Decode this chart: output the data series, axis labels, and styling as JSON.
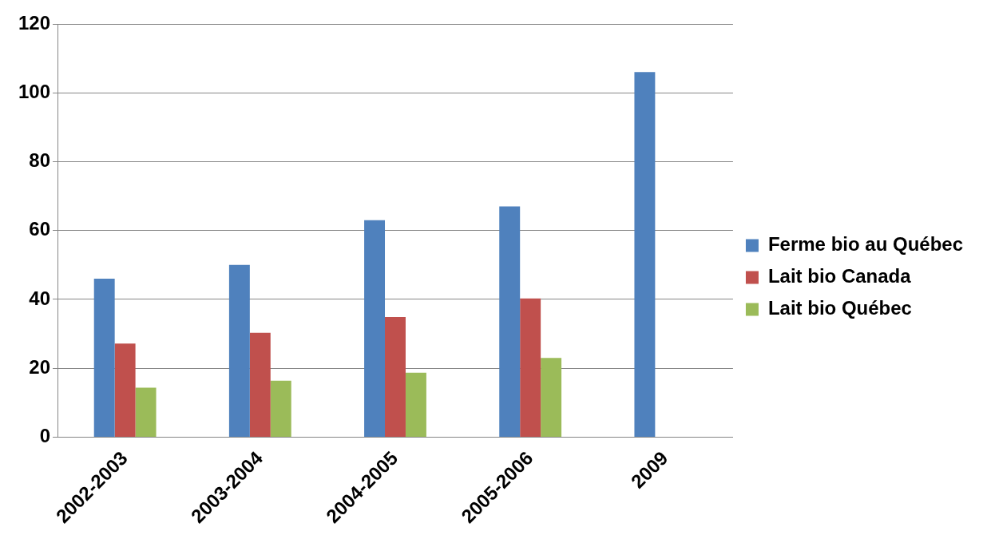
{
  "chart_data": {
    "type": "bar",
    "categories": [
      "2002-2003",
      "2003-2004",
      "2004-2005",
      "2005-2006",
      "2009"
    ],
    "series": [
      {
        "name": "Ferme bio au Québec",
        "color": "#4f81bd",
        "values": [
          46,
          50,
          63,
          67,
          106
        ]
      },
      {
        "name": "Lait bio Canada",
        "color": "#c0504d",
        "values": [
          27.2,
          30.3,
          34.9,
          40.3,
          null
        ]
      },
      {
        "name": "Lait bio Québec",
        "color": "#9bbb59",
        "values": [
          14.4,
          16.4,
          18.7,
          23,
          null
        ]
      }
    ],
    "ylim": [
      0,
      120
    ],
    "yticks": [
      0,
      20,
      40,
      60,
      80,
      100,
      120
    ],
    "grid": "y",
    "legend": "right"
  }
}
